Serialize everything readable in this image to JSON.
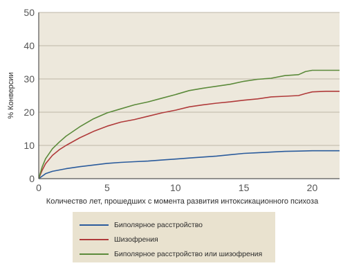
{
  "chart_data": {
    "type": "line",
    "xlabel": "Количество лет, прошедших с момента развития интоксикационного психоза",
    "ylabel": "% Конверсии",
    "xlim": [
      0,
      22
    ],
    "ylim": [
      0,
      50
    ],
    "xticks": [
      "0",
      "5",
      "10",
      "15",
      "20"
    ],
    "yticks": [
      "0",
      "10",
      "20",
      "30",
      "40",
      "50"
    ],
    "grid": "horizontal",
    "plot_background": "#ede8dc",
    "legend_position": "bottom",
    "series": [
      {
        "name": "Биполярное расстройство",
        "color": "#2a5b9c",
        "x": [
          0,
          0.5,
          1,
          2,
          3,
          4,
          5,
          6,
          7,
          8,
          9,
          10,
          11,
          12,
          13,
          14,
          15,
          16,
          17,
          18,
          19,
          20,
          21,
          22
        ],
        "y": [
          0,
          1.5,
          2.2,
          3.0,
          3.6,
          4.1,
          4.6,
          4.9,
          5.1,
          5.3,
          5.6,
          5.9,
          6.2,
          6.5,
          6.8,
          7.2,
          7.6,
          7.8,
          8.0,
          8.2,
          8.3,
          8.4,
          8.4,
          8.4
        ]
      },
      {
        "name": "Шизофрения",
        "color": "#b03a3a",
        "x": [
          0,
          0.25,
          0.5,
          1,
          1.5,
          2,
          3,
          4,
          5,
          6,
          7,
          8,
          9,
          10,
          11,
          12,
          13,
          14,
          15,
          16,
          17,
          18,
          19,
          19.5,
          20,
          21,
          22
        ],
        "y": [
          0,
          2.5,
          4.5,
          7.0,
          8.7,
          10.0,
          12.3,
          14.2,
          15.8,
          17.0,
          17.8,
          18.8,
          19.8,
          20.6,
          21.6,
          22.2,
          22.7,
          23.1,
          23.6,
          24.0,
          24.6,
          24.8,
          25.0,
          25.6,
          26.1,
          26.3,
          26.3
        ]
      },
      {
        "name": "Биполярное расстройство или шизофрения",
        "color": "#5b8a3a",
        "x": [
          0,
          0.25,
          0.5,
          1,
          1.5,
          2,
          3,
          4,
          5,
          6,
          7,
          8,
          9,
          10,
          11,
          12,
          13,
          14,
          15,
          16,
          17,
          18,
          19,
          19.5,
          20,
          21,
          22
        ],
        "y": [
          0,
          3.5,
          6.0,
          9.0,
          11.0,
          12.8,
          15.6,
          18.0,
          19.8,
          21.0,
          22.2,
          23.1,
          24.2,
          25.3,
          26.5,
          27.2,
          27.8,
          28.4,
          29.3,
          29.9,
          30.2,
          31.0,
          31.3,
          32.2,
          32.6,
          32.6,
          32.6
        ]
      }
    ]
  }
}
